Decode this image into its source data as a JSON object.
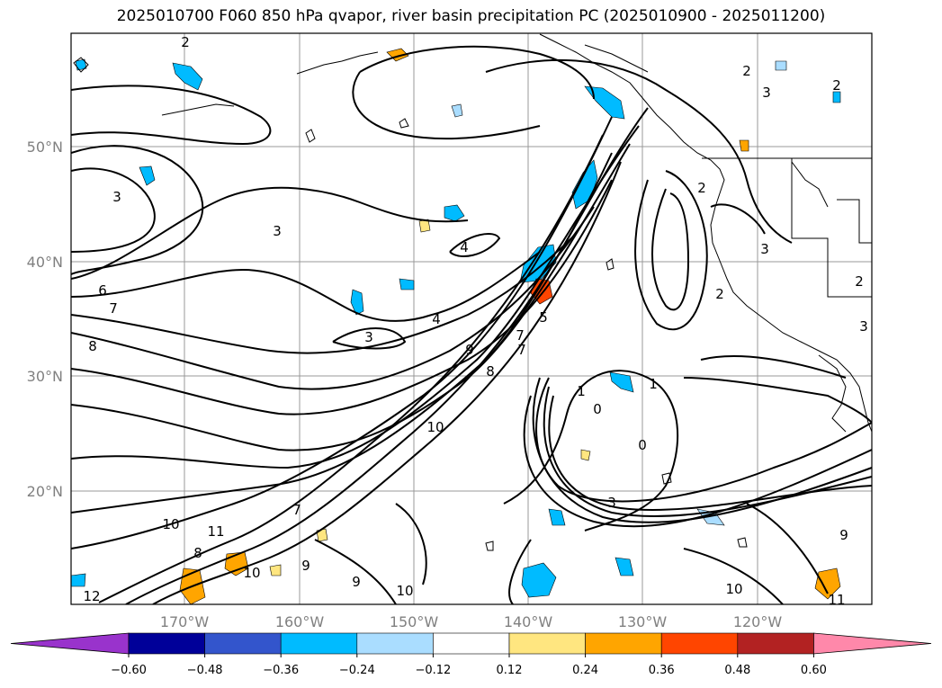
{
  "title": "2025010700 F060 850 hPa qvapor, river basin precipitation PC (2025010900 - 2025011200)",
  "latitude_labels": [
    "50°N",
    "40°N",
    "30°N",
    "20°N"
  ],
  "longitude_labels": [
    "170°W",
    "160°W",
    "150°W",
    "140°W",
    "130°W",
    "120°W"
  ],
  "colorbar": {
    "ticks": [
      "−0.60",
      "−0.48",
      "−0.36",
      "−0.24",
      "−0.12",
      "0.12",
      "0.24",
      "0.36",
      "0.48",
      "0.60"
    ],
    "colors": [
      "#9933cc",
      "#000099",
      "#3355cc",
      "#00bbff",
      "#aaddff",
      "#ffffff",
      "#ffe680",
      "#ffa500",
      "#ff4500",
      "#b22222",
      "#ff88aa"
    ]
  },
  "contour_labels": [
    "2",
    "2",
    "2",
    "3",
    "3",
    "3",
    "4",
    "4",
    "6",
    "7",
    "8",
    "9",
    "10",
    "10",
    "10",
    "11",
    "12",
    "1",
    "0",
    "0",
    "3",
    "5",
    "7",
    "8",
    "9",
    "2",
    "3",
    "2",
    "3",
    "7",
    "10",
    "9",
    "11",
    "2",
    "10",
    "1",
    "3",
    "7",
    "9",
    "8"
  ]
}
